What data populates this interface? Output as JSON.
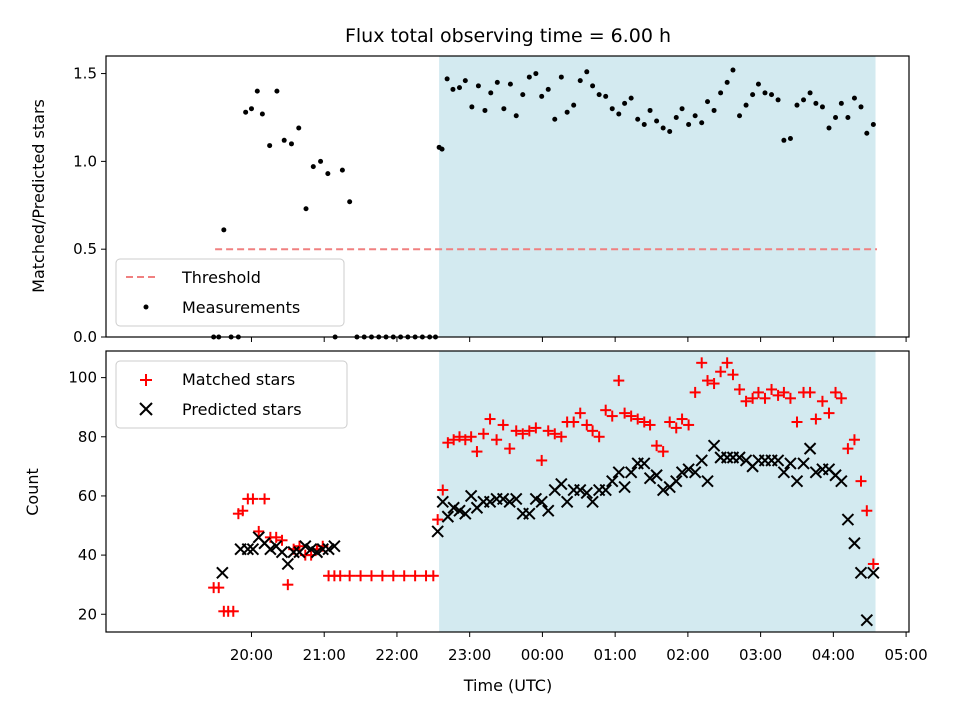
{
  "chart_data": [
    {
      "type": "scatter",
      "title": "Flux total observing time = 6.00 h",
      "xlabel": "",
      "ylabel": "Matched/Predicted stars",
      "ylim": [
        0,
        1.6
      ],
      "yticks": [
        "0.0",
        "0.5",
        "1.0",
        "1.5"
      ],
      "xlim_hours": [
        18.0,
        29.04
      ],
      "shaded_interval_hours": [
        22.58,
        28.58
      ],
      "shade_color": "#d3eaf0",
      "legend_position": "lower-left",
      "legend": [
        {
          "label": "Threshold",
          "kind": "dashed-line",
          "color": "#f08080"
        },
        {
          "label": "Measurements",
          "kind": "dot",
          "color": "#000000"
        }
      ],
      "threshold": {
        "y": 0.5,
        "x_start": 19.5,
        "x_end": 28.6
      },
      "series": [
        {
          "name": "Measurements",
          "x": [
            19.48,
            19.55,
            19.62,
            19.72,
            19.82,
            19.92,
            20.0,
            20.08,
            20.15,
            20.25,
            20.35,
            20.45,
            20.55,
            20.65,
            20.75,
            20.85,
            20.95,
            21.05,
            21.15,
            21.25,
            21.35,
            21.45,
            21.55,
            21.65,
            21.75,
            21.85,
            21.95,
            22.05,
            22.15,
            22.25,
            22.35,
            22.45,
            22.53,
            22.58,
            22.62,
            22.69,
            22.77,
            22.86,
            22.94,
            23.03,
            23.12,
            23.21,
            23.29,
            23.38,
            23.47,
            23.56,
            23.64,
            23.73,
            23.82,
            23.91,
            23.99,
            24.08,
            24.17,
            24.26,
            24.34,
            24.43,
            24.52,
            24.61,
            24.69,
            24.78,
            24.87,
            24.96,
            25.05,
            25.13,
            25.22,
            25.31,
            25.4,
            25.48,
            25.57,
            25.66,
            25.75,
            25.84,
            25.92,
            26.01,
            26.1,
            26.19,
            26.27,
            26.36,
            26.45,
            26.54,
            26.62,
            26.71,
            26.8,
            26.89,
            26.97,
            27.06,
            27.15,
            27.24,
            27.32,
            27.41,
            27.5,
            27.59,
            27.68,
            27.76,
            27.85,
            27.94,
            28.03,
            28.11,
            28.2,
            28.29,
            28.38,
            28.46,
            28.55
          ],
          "values": [
            0,
            0,
            0.61,
            0,
            0,
            1.28,
            1.3,
            1.4,
            1.27,
            1.09,
            1.4,
            1.12,
            1.1,
            1.19,
            0.73,
            0.97,
            1.0,
            0.93,
            0,
            0.95,
            0.77,
            0,
            0,
            0,
            0,
            0,
            0,
            0,
            0,
            0,
            0,
            0,
            0,
            1.08,
            1.07,
            1.47,
            1.41,
            1.42,
            1.46,
            1.31,
            1.43,
            1.29,
            1.39,
            1.45,
            1.3,
            1.44,
            1.26,
            1.38,
            1.48,
            1.5,
            1.37,
            1.41,
            1.24,
            1.48,
            1.28,
            1.32,
            1.46,
            1.51,
            1.43,
            1.38,
            1.37,
            1.3,
            1.27,
            1.33,
            1.36,
            1.24,
            1.21,
            1.29,
            1.23,
            1.19,
            1.17,
            1.25,
            1.3,
            1.21,
            1.26,
            1.22,
            1.34,
            1.29,
            1.39,
            1.45,
            1.52,
            1.26,
            1.32,
            1.38,
            1.44,
            1.39,
            1.38,
            1.35,
            1.12,
            1.13,
            1.32,
            1.35,
            1.39,
            1.33,
            1.31,
            1.19,
            1.25,
            1.33,
            1.25,
            1.36,
            1.31,
            1.16,
            1.21
          ]
        }
      ]
    },
    {
      "type": "scatter",
      "title": "",
      "xlabel": "Time (UTC)",
      "ylabel": "Count",
      "ylim": [
        14,
        109
      ],
      "yticks": [
        "20",
        "40",
        "60",
        "80",
        "100"
      ],
      "xlim_hours": [
        18.0,
        29.04
      ],
      "xticks_hours": [
        20,
        21,
        22,
        23,
        24,
        25,
        26,
        27,
        28,
        29
      ],
      "xticks": [
        "20:00",
        "21:00",
        "22:00",
        "23:00",
        "00:00",
        "01:00",
        "02:00",
        "03:00",
        "04:00",
        "05:00"
      ],
      "shaded_interval_hours": [
        22.58,
        28.58
      ],
      "shade_color": "#d3eaf0",
      "legend_position": "upper-left",
      "legend": [
        {
          "label": "Matched stars",
          "kind": "plus",
          "color": "#ff0000"
        },
        {
          "label": "Predicted stars",
          "kind": "cross",
          "color": "#000000"
        }
      ],
      "series": [
        {
          "name": "Matched stars",
          "marker": "plus",
          "color": "#ff0000",
          "x": [
            19.48,
            19.55,
            19.62,
            19.68,
            19.75,
            19.82,
            19.88,
            19.95,
            20.02,
            20.1,
            20.18,
            20.26,
            20.34,
            20.42,
            20.5,
            20.58,
            20.66,
            20.74,
            20.82,
            20.9,
            20.98,
            21.06,
            21.14,
            21.22,
            21.35,
            21.5,
            21.65,
            21.8,
            21.95,
            22.1,
            22.25,
            22.4,
            22.5,
            22.56,
            22.63,
            22.7,
            22.78,
            22.86,
            22.94,
            23.02,
            23.1,
            23.19,
            23.28,
            23.37,
            23.46,
            23.55,
            23.64,
            23.73,
            23.82,
            23.91,
            23.99,
            24.08,
            24.17,
            24.26,
            24.34,
            24.43,
            24.52,
            24.61,
            24.69,
            24.78,
            24.87,
            24.96,
            25.05,
            25.13,
            25.22,
            25.31,
            25.4,
            25.48,
            25.57,
            25.66,
            25.75,
            25.84,
            25.92,
            26.01,
            26.1,
            26.19,
            26.27,
            26.36,
            26.45,
            26.54,
            26.62,
            26.71,
            26.8,
            26.89,
            26.97,
            27.06,
            27.15,
            27.24,
            27.32,
            27.41,
            27.5,
            27.59,
            27.68,
            27.76,
            27.85,
            27.94,
            28.03,
            28.11,
            28.2,
            28.29,
            28.38,
            28.46,
            28.55
          ],
          "values": [
            29,
            29,
            21,
            21,
            21,
            54,
            55,
            59,
            59,
            48,
            59,
            46,
            46,
            45,
            30,
            42,
            43,
            40,
            40,
            42,
            43,
            33,
            33,
            33,
            33,
            33,
            33,
            33,
            33,
            33,
            33,
            33,
            33,
            52,
            62,
            78,
            79,
            80,
            79,
            80,
            75,
            81,
            86,
            79,
            84,
            76,
            82,
            81,
            82,
            83,
            72,
            82,
            81,
            80,
            85,
            85,
            88,
            84,
            82,
            80,
            89,
            87,
            99,
            88,
            87,
            86,
            85,
            84,
            77,
            75,
            85,
            83,
            86,
            84,
            95,
            105,
            99,
            98,
            102,
            105,
            101,
            96,
            92,
            93,
            95,
            93,
            96,
            94,
            95,
            93,
            85,
            95,
            95,
            86,
            92,
            88,
            95,
            93,
            76,
            79,
            65,
            55,
            37
          ]
        },
        {
          "name": "Predicted stars",
          "marker": "cross",
          "color": "#000000",
          "x": [
            19.6,
            19.85,
            19.95,
            20.02,
            20.1,
            20.18,
            20.26,
            20.34,
            20.42,
            20.5,
            20.58,
            20.66,
            20.74,
            20.82,
            20.9,
            20.98,
            21.06,
            21.14,
            22.56,
            22.63,
            22.7,
            22.78,
            22.86,
            22.94,
            23.02,
            23.1,
            23.19,
            23.28,
            23.37,
            23.46,
            23.55,
            23.64,
            23.73,
            23.82,
            23.91,
            23.99,
            24.08,
            24.17,
            24.26,
            24.34,
            24.43,
            24.52,
            24.61,
            24.69,
            24.78,
            24.87,
            24.96,
            25.05,
            25.13,
            25.22,
            25.31,
            25.4,
            25.48,
            25.57,
            25.66,
            25.75,
            25.84,
            25.92,
            26.01,
            26.1,
            26.19,
            26.27,
            26.36,
            26.45,
            26.54,
            26.62,
            26.71,
            26.8,
            26.89,
            26.97,
            27.06,
            27.15,
            27.24,
            27.32,
            27.41,
            27.5,
            27.59,
            27.68,
            27.76,
            27.85,
            27.94,
            28.03,
            28.11,
            28.2,
            28.29,
            28.38,
            28.46,
            28.55
          ],
          "values": [
            34,
            42,
            42,
            42,
            46,
            44,
            42,
            43,
            41,
            37,
            41,
            41,
            43,
            42,
            41,
            42,
            42,
            43,
            48,
            58,
            53,
            56,
            55,
            54,
            60,
            56,
            58,
            58,
            59,
            59,
            58,
            59,
            54,
            54,
            59,
            58,
            55,
            62,
            64,
            58,
            62,
            62,
            61,
            58,
            62,
            62,
            65,
            68,
            63,
            68,
            71,
            71,
            66,
            67,
            62,
            63,
            65,
            68,
            69,
            68,
            72,
            65,
            77,
            73,
            73,
            73,
            73,
            72,
            70,
            72,
            72,
            72,
            72,
            68,
            71,
            65,
            71,
            76,
            68,
            69,
            69,
            67,
            65,
            52,
            44,
            34,
            18,
            34
          ]
        }
      ]
    }
  ]
}
